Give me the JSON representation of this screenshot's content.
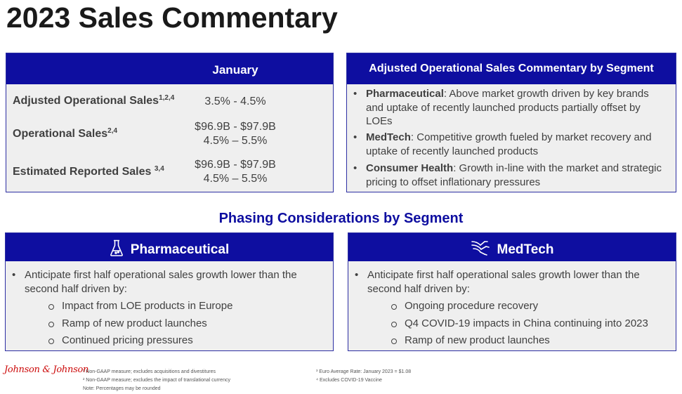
{
  "page": {
    "title": "2023 Sales Commentary"
  },
  "sales_table": {
    "header": "January",
    "rows": [
      {
        "label": "Adjusted Operational Sales",
        "sup": "1,2,4",
        "value": "3.5% - 4.5%",
        "value2": ""
      },
      {
        "label": "Operational Sales",
        "sup": "2,4",
        "value": "$96.9B - $97.9B",
        "value2": "4.5% – 5.5%"
      },
      {
        "label": "Estimated Reported Sales",
        "sup": "3,4",
        "value": "$96.9B - $97.9B",
        "value2": "4.5% – 5.5%"
      }
    ]
  },
  "commentary": {
    "header": "Adjusted Operational Sales Commentary by Segment",
    "items": [
      {
        "segment": "Pharmaceutical",
        "text": ": Above market growth driven by key brands and uptake of recently launched products partially offset by LOEs"
      },
      {
        "segment": "MedTech",
        "text": ": Competitive growth fueled by market recovery and uptake of recently launched products"
      },
      {
        "segment": "Consumer Health",
        "text": ": Growth in-line with the market and strategic pricing to offset inflationary pressures"
      }
    ]
  },
  "phasing": {
    "title": "Phasing Considerations by Segment",
    "pharma": {
      "header": "Pharmaceutical",
      "icon": "flask-icon",
      "intro": "Anticipate first half operational sales growth lower than the second half driven by:",
      "subs": [
        "Impact from LOE products in Europe",
        "Ramp of new product launches",
        "Continued pricing pressures"
      ]
    },
    "medtech": {
      "header": "MedTech",
      "icon": "medtech-icon",
      "intro": "Anticipate first half operational sales growth lower than the second half driven by:",
      "subs": [
        "Ongoing procedure recovery",
        "Q4 COVID-19 impacts in China continuing into 2023",
        "Ramp of new product launches"
      ]
    }
  },
  "footer": {
    "logo": "Johnson & Johnson",
    "notes": [
      "¹ Non-GAAP measure; excludes acquisitions and divestitures",
      "² Non-GAAP measure; excludes the impact of translational currency",
      "Note: Percentages may be rounded",
      "³ Euro Average Rate: January 2023 = $1.08",
      "⁴ Excludes COVID-19 Vaccine"
    ]
  },
  "colors": {
    "brand_blue": "#0e0ea0",
    "panel_gray": "#efefef",
    "logo_red": "#cc0a0a"
  }
}
